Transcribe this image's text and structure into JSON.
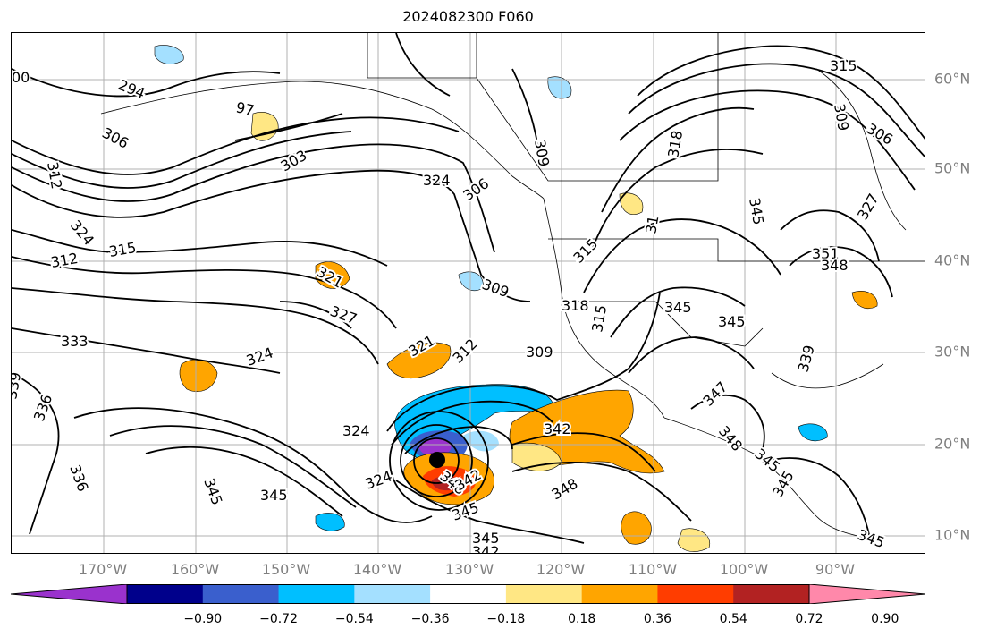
{
  "title": "2024082300 F060",
  "lat_labels": [
    "60°N",
    "50°N",
    "40°N",
    "30°N",
    "20°N",
    "10°N"
  ],
  "lon_labels": [
    "170°W",
    "160°W",
    "150°W",
    "140°W",
    "130°W",
    "120°W",
    "110°W",
    "100°W",
    "90°W"
  ],
  "colorbar": {
    "labels": [
      "−0.90",
      "−0.72",
      "−0.54",
      "−0.36",
      "−0.18",
      "0.18",
      "0.36",
      "0.54",
      "0.72",
      "0.90"
    ],
    "colors": [
      "#9a32cd",
      "#00008b",
      "#3a5fcd",
      "#00bfff",
      "#a4e0ff",
      "#ffffff",
      "#ffe784",
      "#ffa500",
      "#ff3d00",
      "#b22222",
      "#ff88aa"
    ]
  },
  "contour_labels": [
    "294",
    "97",
    "306",
    "303",
    "324",
    "306",
    "309",
    "318",
    "315",
    "312",
    "315",
    "321",
    "309",
    "327",
    "318",
    "315",
    "345",
    "345",
    "333",
    "324",
    "321",
    "312",
    "309",
    "339",
    "336",
    "324",
    "342",
    "336",
    "345",
    "345",
    "324",
    "348",
    "342",
    "345",
    "348",
    "345",
    "342",
    "347",
    "348",
    "345",
    "345",
    "345",
    "339",
    "327",
    "351",
    "348",
    "315",
    "309",
    "306",
    "345",
    "00",
    "312",
    "324",
    "31"
  ],
  "storm_marker": "black-dot"
}
